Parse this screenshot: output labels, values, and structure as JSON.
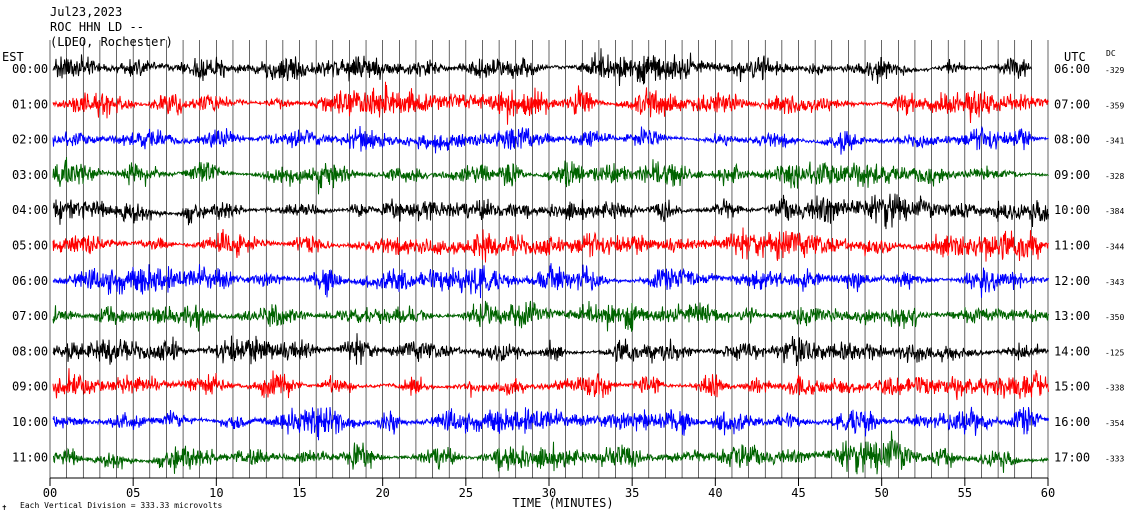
{
  "header": {
    "date": "Jul23,2023",
    "station": "ROC HHN LD --",
    "network": "(LDEO, Rochester)"
  },
  "chart_data": {
    "type": "helicorder",
    "left_axis_title": "EST",
    "right_axis_title": "UTC",
    "dc_title": "DC",
    "x_title": "TIME (MINUTES)",
    "footer": "Each Vertical Division =  333.33 microvolts",
    "footer_mark": "✝",
    "xlim": [
      0,
      60
    ],
    "x_ticks": [
      "00",
      "05",
      "10",
      "15",
      "20",
      "25",
      "30",
      "35",
      "40",
      "45",
      "50",
      "55",
      "60"
    ],
    "trace_colors": [
      "#000000",
      "#ff0000",
      "#0000ff",
      "#006400"
    ],
    "rows": [
      {
        "est": "00:00",
        "utc": "06:00",
        "dc": "-329",
        "end_minute": 59
      },
      {
        "est": "01:00",
        "utc": "07:00",
        "dc": "-359",
        "end_minute": 60
      },
      {
        "est": "02:00",
        "utc": "08:00",
        "dc": "-341",
        "end_minute": 60
      },
      {
        "est": "03:00",
        "utc": "09:00",
        "dc": "-328",
        "end_minute": 60
      },
      {
        "est": "04:00",
        "utc": "10:00",
        "dc": "-384",
        "end_minute": 60
      },
      {
        "est": "05:00",
        "utc": "11:00",
        "dc": "-344",
        "end_minute": 60
      },
      {
        "est": "06:00",
        "utc": "12:00",
        "dc": "-343",
        "end_minute": 60
      },
      {
        "est": "07:00",
        "utc": "13:00",
        "dc": "-350",
        "end_minute": 60
      },
      {
        "est": "08:00",
        "utc": "14:00",
        "dc": "-125",
        "end_minute": 60
      },
      {
        "est": "09:00",
        "utc": "15:00",
        "dc": "-338",
        "end_minute": 60
      },
      {
        "est": "10:00",
        "utc": "16:00",
        "dc": "-354",
        "end_minute": 60
      },
      {
        "est": "11:00",
        "utc": "17:00",
        "dc": "-333",
        "end_minute": 60
      }
    ]
  }
}
